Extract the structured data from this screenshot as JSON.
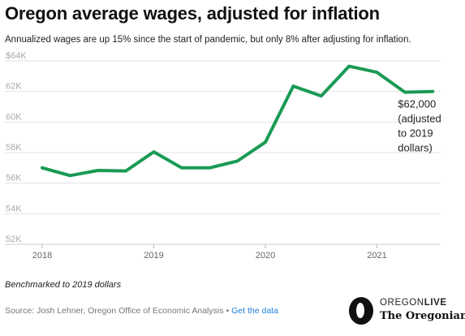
{
  "header": {
    "title": "Oregon average wages, adjusted for inflation",
    "subtitle": "Annualized wages are up 15% since the start of pandemic, but only 8% after adjusting for inflation."
  },
  "footer": {
    "note": "Benchmarked to 2019 dollars",
    "source": "Source: Josh Lehner, Oregon Office of Economic Analysis",
    "separator": "•",
    "link_label": "Get the data"
  },
  "logo": {
    "brand_top_a": "OREGON",
    "brand_top_b": "LIVE",
    "brand_bottom": "The Oregonian"
  },
  "chart_data": {
    "type": "line",
    "title": "Oregon average wages, adjusted for inflation",
    "xlabel": "",
    "ylabel": "",
    "xlim": [
      2018,
      2021.6
    ],
    "ylim": [
      52000,
      64000
    ],
    "x_ticks": [
      2018,
      2019,
      2020,
      2021
    ],
    "x_tick_labels": [
      "2018",
      "2019",
      "2020",
      "2021"
    ],
    "y_ticks": [
      52000,
      54000,
      56000,
      58000,
      60000,
      62000,
      64000
    ],
    "y_tick_labels": [
      "52K",
      "54K",
      "56K",
      "58K",
      "60K",
      "62K",
      "$64K"
    ],
    "grid": true,
    "legend": "none",
    "color": "#1a9a55",
    "series": [
      {
        "x": [
          2018.0,
          2018.25,
          2018.5,
          2018.75,
          2019.0,
          2019.25,
          2019.5,
          2019.75,
          2020.0,
          2020.25,
          2020.5,
          2020.75,
          2021.0,
          2021.25,
          2021.5
        ],
        "values": [
          57000,
          56500,
          56830,
          56800,
          58050,
          57000,
          57000,
          57450,
          58680,
          62350,
          61700,
          63650,
          63250,
          61950,
          62000
        ]
      }
    ],
    "annotation": {
      "x": 2021.5,
      "y": 62000,
      "lines": [
        "$62,000",
        "(adjusted",
        "to 2019",
        "dollars)"
      ]
    }
  }
}
